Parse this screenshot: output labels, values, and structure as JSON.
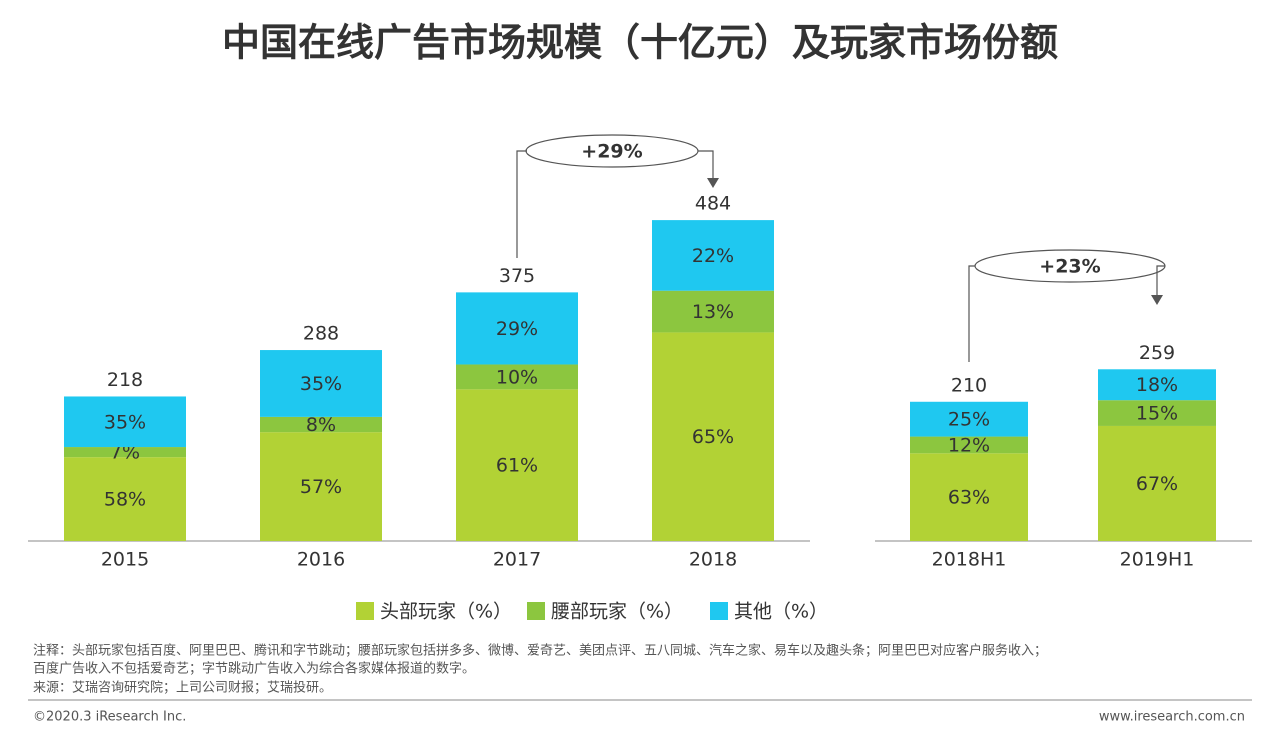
{
  "title": "中国在线广告市场规模（十亿元）及玩家市场份额",
  "chart_data": {
    "type": "bar",
    "categories": [
      "2015",
      "2016",
      "2017",
      "2018",
      "2018H1",
      "2019H1"
    ],
    "totals": [
      218,
      288,
      375,
      484,
      210,
      259
    ],
    "series": [
      {
        "name": "头部玩家（%）",
        "color": "#b2d235",
        "values": [
          58,
          57,
          61,
          65,
          63,
          67
        ],
        "value_labels": [
          "58%",
          "57%",
          "61%",
          "65%",
          "63%",
          "67%"
        ]
      },
      {
        "name": "腰部玩家（%）",
        "color": "#8cc63f",
        "values": [
          7,
          8,
          10,
          13,
          12,
          15
        ],
        "value_labels": [
          "7%",
          "8%",
          "10%",
          "13%",
          "12%",
          "15%"
        ]
      },
      {
        "name": "其他（%）",
        "color": "#1fc8f0",
        "values": [
          35,
          35,
          29,
          22,
          25,
          18
        ],
        "value_labels": [
          "35%",
          "35%",
          "29%",
          "22%",
          "25%",
          "18%"
        ]
      }
    ],
    "annotations": [
      "+29%",
      "+23%"
    ]
  },
  "notes": [
    "注释：头部玩家包括百度、阿里巴巴、腾讯和字节跳动；腰部玩家包括拼多多、微博、爱奇艺、美团点评、五八同城、汽车之家、易车以及趣头条；阿里巴巴对应客户服务收入；",
    "百度广告收入不包括爱奇艺；字节跳动广告收入为综合各家媒体报道的数字。",
    "来源：艾瑞咨询研究院；上司公司财报；艾瑞投研。"
  ],
  "footer": {
    "left": "©2020.3 iResearch Inc.",
    "right": "www.iresearch.com.cn"
  }
}
